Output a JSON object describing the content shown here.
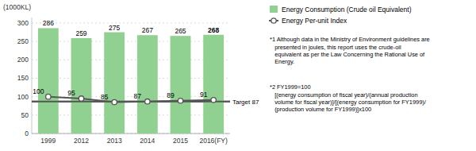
{
  "chart_data": {
    "type": "bar",
    "ylabel": "(1000KL)",
    "categories": [
      "1999",
      "2012",
      "2013",
      "2014",
      "2015",
      "2016(FY)"
    ],
    "series": [
      {
        "name": "Energy Consumption (Crude oil Equivalent)",
        "type": "bar",
        "color": "#90d090",
        "values": [
          286,
          259,
          275,
          267,
          265,
          268
        ]
      },
      {
        "name": "Energy Per-unit Index",
        "type": "line",
        "color": "#555555",
        "marker": "circle",
        "values": [
          100,
          95,
          85,
          87,
          89,
          91
        ]
      }
    ],
    "target": {
      "value": 87,
      "label": "Target 87",
      "color": "#555555"
    },
    "ylim": [
      0,
      315
    ],
    "yticks": [
      0,
      50,
      100,
      150,
      200,
      250,
      300
    ],
    "grid": true,
    "data_labels": true,
    "legend": "right",
    "annotations": [
      "*1 Although data in the Ministry of Environment guidelines are",
      "   presented in joules, this report uses the crude-oil\n   equivalent as per the Law Concerning the Rational Use of\n   Energy.",
      "*2 FY1999=100",
      "   [(energy consumption of fiscal year)/(annual production\n   volume for fiscal year)]/[(energy consumption for FY1999)/\n   (production volume for FY1999)]x100"
    ]
  }
}
